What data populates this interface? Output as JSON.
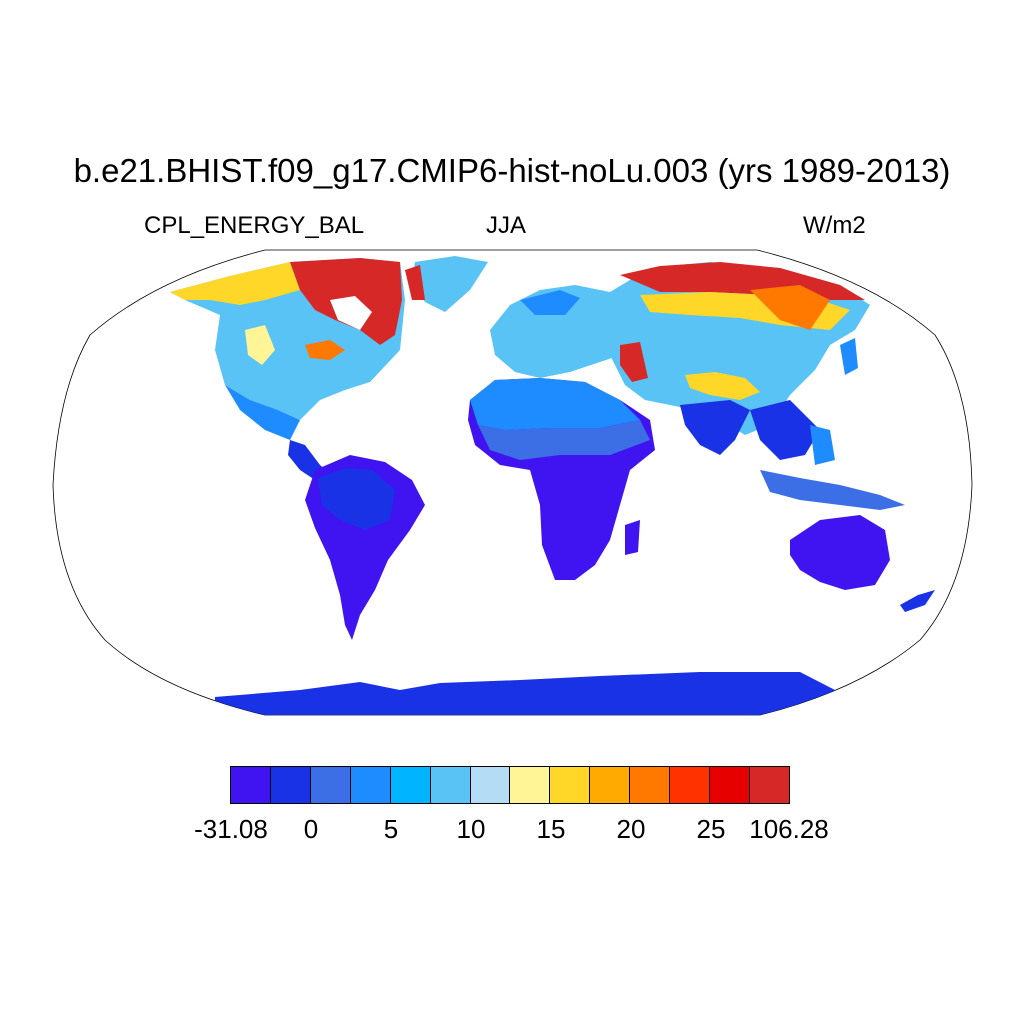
{
  "title": "b.e21.BHIST.f09_g17.CMIP6-hist-noLu.003 (yrs 1989-2013)",
  "subtitle": {
    "left": "CPL_ENERGY_BAL",
    "center": "JJA",
    "right": "W/m2"
  },
  "map": {
    "projection": "robinson",
    "ocean_color": "#ffffff",
    "outline_color": "#000000"
  },
  "colorbar": {
    "colors": [
      "#3f14f0",
      "#1a32e6",
      "#3c6ee6",
      "#1e8cff",
      "#00b4ff",
      "#5ac3f5",
      "#b4dcf5",
      "#fff596",
      "#ffd728",
      "#ffaa00",
      "#ff7800",
      "#ff3200",
      "#e60000",
      "#d72828"
    ],
    "labels": [
      "-31.08",
      "0",
      "5",
      "10",
      "15",
      "20",
      "25",
      "106.28"
    ]
  }
}
